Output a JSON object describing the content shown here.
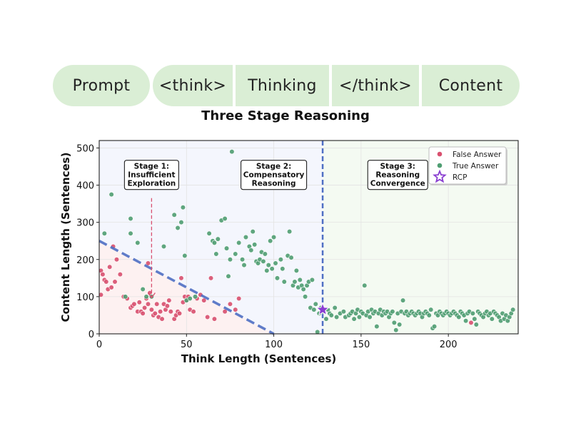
{
  "pipeline": {
    "segments": [
      "Prompt",
      "<think>",
      "Thinking",
      "</think>",
      "Content"
    ],
    "caption": "Three Stage Reasoning"
  },
  "colors": {
    "pill_fill": "#daeed5",
    "false_answer": "#d9506f",
    "true_answer": "#4f9e72",
    "rcp_star": "#8a3fd1",
    "divider": "#4f6fc4",
    "stage1_fill": "#fdf1f1",
    "stage2_fill": "#f4f6fd",
    "stage3_fill": "#f4faf2"
  },
  "chart_data": {
    "type": "scatter",
    "xlabel": "Think Length (Sentences)",
    "ylabel": "Content Length (Sentences)",
    "xlim": [
      0,
      240
    ],
    "ylim": [
      0,
      520
    ],
    "xticks": [
      0,
      50,
      100,
      150,
      200
    ],
    "yticks": [
      0,
      100,
      200,
      300,
      400,
      500
    ],
    "grid": true,
    "legend_position": "top-right",
    "legend": [
      "False Answer",
      "True Answer",
      "RCP"
    ],
    "stage_boundary_x": 128,
    "boundary_line": {
      "from": [
        0,
        250
      ],
      "to": [
        100,
        0
      ]
    },
    "annotations": [
      {
        "lines": [
          "Stage 1:",
          "Insufficient",
          "Exploration"
        ],
        "x": 30,
        "y": 440,
        "arrow_to": [
          30,
          95
        ]
      },
      {
        "lines": [
          "Stage 2:",
          "Compensatory",
          "Reasoning"
        ],
        "x": 100,
        "y": 440
      },
      {
        "lines": [
          "Stage 3:",
          "Reasoning",
          "Convergence"
        ],
        "x": 171,
        "y": 440
      }
    ],
    "rcp": {
      "label": "RCP",
      "x": 128,
      "y": 65
    },
    "series": [
      {
        "name": "False Answer",
        "points": [
          [
            1,
            170
          ],
          [
            1,
            105
          ],
          [
            2,
            160
          ],
          [
            3,
            145
          ],
          [
            4,
            140
          ],
          [
            5,
            120
          ],
          [
            6,
            180
          ],
          [
            7,
            125
          ],
          [
            8,
            235
          ],
          [
            9,
            140
          ],
          [
            10,
            200
          ],
          [
            12,
            160
          ],
          [
            14,
            100
          ],
          [
            16,
            95
          ],
          [
            18,
            70
          ],
          [
            19,
            75
          ],
          [
            20,
            80
          ],
          [
            22,
            60
          ],
          [
            23,
            85
          ],
          [
            24,
            60
          ],
          [
            25,
            55
          ],
          [
            26,
            70
          ],
          [
            27,
            95
          ],
          [
            28,
            190
          ],
          [
            28,
            80
          ],
          [
            29,
            110
          ],
          [
            30,
            65
          ],
          [
            31,
            50
          ],
          [
            32,
            55
          ],
          [
            33,
            80
          ],
          [
            34,
            45
          ],
          [
            35,
            60
          ],
          [
            36,
            40
          ],
          [
            37,
            80
          ],
          [
            38,
            65
          ],
          [
            39,
            75
          ],
          [
            40,
            90
          ],
          [
            41,
            60
          ],
          [
            43,
            40
          ],
          [
            44,
            50
          ],
          [
            45,
            60
          ],
          [
            46,
            55
          ],
          [
            47,
            150
          ],
          [
            48,
            85
          ],
          [
            49,
            100
          ],
          [
            50,
            90
          ],
          [
            51,
            100
          ],
          [
            52,
            65
          ],
          [
            54,
            60
          ],
          [
            56,
            95
          ],
          [
            58,
            105
          ],
          [
            60,
            90
          ],
          [
            62,
            45
          ],
          [
            64,
            150
          ],
          [
            66,
            40
          ],
          [
            72,
            60
          ],
          [
            75,
            80
          ],
          [
            78,
            65
          ],
          [
            80,
            95
          ],
          [
            213,
            30
          ]
        ]
      },
      {
        "name": "True Answer",
        "points": [
          [
            3,
            270
          ],
          [
            7,
            375
          ],
          [
            15,
            100
          ],
          [
            18,
            270
          ],
          [
            18,
            310
          ],
          [
            22,
            245
          ],
          [
            25,
            120
          ],
          [
            27,
            100
          ],
          [
            30,
            100
          ],
          [
            37,
            235
          ],
          [
            43,
            320
          ],
          [
            45,
            285
          ],
          [
            47,
            300
          ],
          [
            48,
            340
          ],
          [
            49,
            210
          ],
          [
            50,
            90
          ],
          [
            52,
            95
          ],
          [
            55,
            100
          ],
          [
            63,
            270
          ],
          [
            65,
            250
          ],
          [
            66,
            245
          ],
          [
            67,
            215
          ],
          [
            68,
            255
          ],
          [
            70,
            305
          ],
          [
            72,
            310
          ],
          [
            73,
            230
          ],
          [
            74,
            155
          ],
          [
            75,
            200
          ],
          [
            76,
            490
          ],
          [
            78,
            215
          ],
          [
            80,
            245
          ],
          [
            82,
            200
          ],
          [
            83,
            185
          ],
          [
            84,
            260
          ],
          [
            86,
            235
          ],
          [
            87,
            225
          ],
          [
            88,
            275
          ],
          [
            89,
            240
          ],
          [
            90,
            195
          ],
          [
            91,
            190
          ],
          [
            92,
            200
          ],
          [
            93,
            220
          ],
          [
            94,
            195
          ],
          [
            95,
            215
          ],
          [
            96,
            170
          ],
          [
            97,
            185
          ],
          [
            98,
            250
          ],
          [
            99,
            175
          ],
          [
            100,
            260
          ],
          [
            101,
            190
          ],
          [
            102,
            150
          ],
          [
            104,
            200
          ],
          [
            105,
            175
          ],
          [
            106,
            140
          ],
          [
            108,
            210
          ],
          [
            109,
            275
          ],
          [
            110,
            205
          ],
          [
            111,
            130
          ],
          [
            112,
            140
          ],
          [
            113,
            170
          ],
          [
            114,
            125
          ],
          [
            115,
            145
          ],
          [
            116,
            130
          ],
          [
            117,
            120
          ],
          [
            118,
            100
          ],
          [
            119,
            130
          ],
          [
            120,
            140
          ],
          [
            121,
            70
          ],
          [
            122,
            145
          ],
          [
            123,
            65
          ],
          [
            124,
            80
          ],
          [
            125,
            5
          ],
          [
            126,
            55
          ],
          [
            127,
            70
          ],
          [
            128,
            60
          ],
          [
            130,
            40
          ],
          [
            131,
            65
          ],
          [
            132,
            55
          ],
          [
            133,
            50
          ],
          [
            135,
            70
          ],
          [
            136,
            45
          ],
          [
            138,
            55
          ],
          [
            140,
            60
          ],
          [
            141,
            45
          ],
          [
            143,
            50
          ],
          [
            144,
            55
          ],
          [
            145,
            60
          ],
          [
            146,
            40
          ],
          [
            147,
            55
          ],
          [
            148,
            65
          ],
          [
            149,
            45
          ],
          [
            150,
            60
          ],
          [
            151,
            55
          ],
          [
            152,
            130
          ],
          [
            153,
            50
          ],
          [
            154,
            60
          ],
          [
            155,
            45
          ],
          [
            156,
            65
          ],
          [
            157,
            55
          ],
          [
            158,
            60
          ],
          [
            159,
            20
          ],
          [
            160,
            55
          ],
          [
            161,
            65
          ],
          [
            162,
            50
          ],
          [
            163,
            60
          ],
          [
            164,
            55
          ],
          [
            165,
            60
          ],
          [
            166,
            45
          ],
          [
            167,
            55
          ],
          [
            168,
            60
          ],
          [
            169,
            30
          ],
          [
            170,
            10
          ],
          [
            171,
            55
          ],
          [
            172,
            25
          ],
          [
            173,
            60
          ],
          [
            174,
            90
          ],
          [
            175,
            55
          ],
          [
            176,
            60
          ],
          [
            177,
            50
          ],
          [
            178,
            55
          ],
          [
            179,
            60
          ],
          [
            180,
            55
          ],
          [
            181,
            50
          ],
          [
            182,
            55
          ],
          [
            183,
            60
          ],
          [
            184,
            55
          ],
          [
            185,
            45
          ],
          [
            186,
            55
          ],
          [
            187,
            60
          ],
          [
            188,
            55
          ],
          [
            189,
            50
          ],
          [
            190,
            65
          ],
          [
            191,
            15
          ],
          [
            192,
            20
          ],
          [
            193,
            55
          ],
          [
            194,
            50
          ],
          [
            195,
            60
          ],
          [
            196,
            55
          ],
          [
            197,
            50
          ],
          [
            198,
            55
          ],
          [
            199,
            60
          ],
          [
            200,
            55
          ],
          [
            201,
            50
          ],
          [
            202,
            55
          ],
          [
            203,
            60
          ],
          [
            204,
            55
          ],
          [
            205,
            50
          ],
          [
            206,
            45
          ],
          [
            207,
            60
          ],
          [
            208,
            55
          ],
          [
            209,
            50
          ],
          [
            210,
            35
          ],
          [
            211,
            55
          ],
          [
            212,
            60
          ],
          [
            214,
            55
          ],
          [
            215,
            40
          ],
          [
            216,
            25
          ],
          [
            217,
            60
          ],
          [
            218,
            55
          ],
          [
            219,
            50
          ],
          [
            220,
            45
          ],
          [
            221,
            55
          ],
          [
            222,
            60
          ],
          [
            223,
            50
          ],
          [
            224,
            55
          ],
          [
            225,
            40
          ],
          [
            226,
            60
          ],
          [
            227,
            55
          ],
          [
            228,
            50
          ],
          [
            229,
            45
          ],
          [
            230,
            35
          ],
          [
            231,
            55
          ],
          [
            232,
            40
          ],
          [
            233,
            50
          ],
          [
            234,
            35
          ],
          [
            235,
            45
          ],
          [
            236,
            55
          ],
          [
            237,
            65
          ]
        ]
      }
    ]
  }
}
